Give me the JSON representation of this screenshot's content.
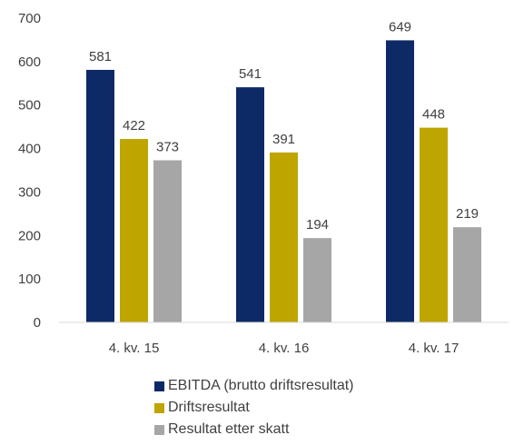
{
  "chart_data": {
    "type": "bar",
    "categories": [
      "4. kv. 15",
      "4. kv. 16",
      "4. kv. 17"
    ],
    "series": [
      {
        "name": "EBITDA (brutto driftsresultat)",
        "values": [
          581,
          541,
          649
        ],
        "color": "#0d2a66"
      },
      {
        "name": "Driftsresultat",
        "values": [
          422,
          391,
          448
        ],
        "color": "#bfa500"
      },
      {
        "name": "Resultat etter skatt",
        "values": [
          373,
          194,
          219
        ],
        "color": "#a6a6a6"
      }
    ],
    "ylim": [
      0,
      700
    ],
    "yticks": [
      0,
      100,
      200,
      300,
      400,
      500,
      600,
      700
    ],
    "grid": false,
    "legend_position": "bottom",
    "data_labels": true
  }
}
